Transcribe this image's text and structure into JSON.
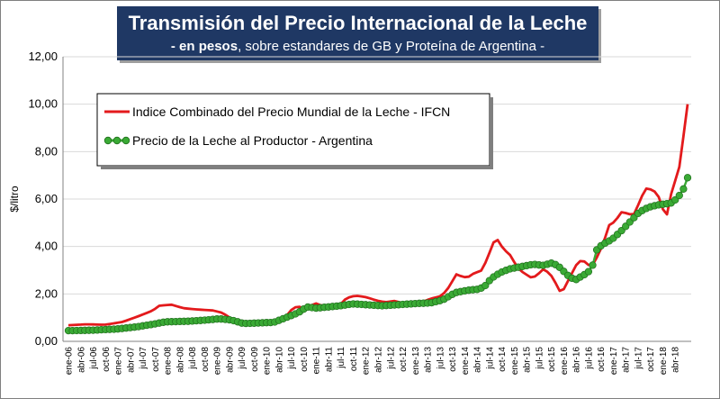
{
  "chart_data": {
    "type": "line",
    "title": "Transmisión del Precio Internacional de la Leche",
    "subtitle_bold": "- en pesos",
    "subtitle_rest": ", sobre estandares de GB y Proteína de  Argentina -",
    "xlabel": "",
    "ylabel": "$/litro",
    "ylim": [
      0,
      12
    ],
    "yticks": [
      "0,00",
      "2,00",
      "4,00",
      "6,00",
      "8,00",
      "10,00",
      "12,00"
    ],
    "xtick_labels": [
      "ene-06",
      "abr-06",
      "jul-06",
      "oct-06",
      "ene-07",
      "abr-07",
      "jul-07",
      "oct-07",
      "ene-08",
      "abr-08",
      "jul-08",
      "oct-08",
      "ene-09",
      "abr-09",
      "jul-09",
      "oct-09",
      "ene-10",
      "abr-10",
      "jul-10",
      "oct-10",
      "ene-11",
      "abr-11",
      "jul-11",
      "oct-11",
      "ene-12",
      "abr-12",
      "jul-12",
      "oct-12",
      "ene-13",
      "abr-13",
      "jul-13",
      "oct-13",
      "ene-14",
      "abr-14",
      "jul-14",
      "oct-14",
      "ene-15",
      "abr-15",
      "jul-15",
      "oct-15",
      "ene-16",
      "abr-16",
      "jul-16",
      "oct-16",
      "ene-17",
      "abr-17",
      "jul-17",
      "oct-17",
      "ene-18",
      "abr-18"
    ],
    "n_points": 151,
    "series": [
      {
        "name": "Indice Combinado del Precio Mundial de la Leche - IFCN",
        "color": "#e31a1c",
        "style": "line",
        "keypoints": [
          [
            0,
            0.68
          ],
          [
            6,
            0.72
          ],
          [
            12,
            0.7
          ],
          [
            18,
            0.82
          ],
          [
            24,
            1.1
          ],
          [
            28,
            1.3
          ],
          [
            30,
            1.5
          ],
          [
            34,
            1.55
          ],
          [
            38,
            1.4
          ],
          [
            42,
            1.35
          ],
          [
            48,
            1.3
          ],
          [
            51,
            1.2
          ],
          [
            54,
            0.95
          ],
          [
            60,
            0.75
          ],
          [
            66,
            0.78
          ],
          [
            70,
            0.85
          ],
          [
            72,
            1.05
          ],
          [
            74,
            1.35
          ],
          [
            76,
            1.5
          ],
          [
            78,
            1.35
          ],
          [
            80,
            1.5
          ],
          [
            82,
            1.6
          ],
          [
            84,
            1.5
          ],
          [
            87,
            1.5
          ],
          [
            90,
            1.55
          ],
          [
            92,
            1.82
          ],
          [
            94,
            1.9
          ],
          [
            96,
            1.92
          ],
          [
            99,
            1.85
          ],
          [
            102,
            1.72
          ],
          [
            105,
            1.65
          ],
          [
            108,
            1.7
          ],
          [
            111,
            1.6
          ],
          [
            114,
            1.55
          ],
          [
            117,
            1.65
          ],
          [
            120,
            1.8
          ],
          [
            123,
            1.9
          ],
          [
            125,
            2.1
          ],
          [
            127,
            2.5
          ],
          [
            128,
            2.85
          ],
          [
            130,
            2.75
          ],
          [
            132,
            2.68
          ],
          [
            134,
            2.85
          ],
          [
            137,
            3.0
          ],
          [
            139,
            3.6
          ],
          [
            141,
            4.25
          ],
          [
            142,
            4.3
          ],
          [
            144,
            3.9
          ],
          [
            147,
            3.55
          ],
          [
            148,
            3.2
          ],
          [
            150,
            2.95
          ],
          [
            153,
            2.7
          ],
          [
            155,
            2.75
          ],
          [
            157,
            3.05
          ],
          [
            159,
            2.9
          ],
          [
            161,
            2.6
          ],
          [
            162,
            2.1
          ],
          [
            164,
            2.2
          ],
          [
            166,
            2.7
          ],
          [
            168,
            3.2
          ],
          [
            170,
            3.45
          ],
          [
            172,
            3.25
          ],
          [
            173,
            3.1
          ],
          [
            175,
            3.55
          ],
          [
            177,
            4.1
          ],
          [
            179,
            4.9
          ],
          [
            181,
            5.05
          ],
          [
            183,
            5.45
          ],
          [
            185,
            5.4
          ],
          [
            187,
            5.3
          ],
          [
            189,
            5.85
          ],
          [
            191,
            6.45
          ],
          [
            193,
            6.4
          ],
          [
            195,
            6.25
          ],
          [
            197,
            5.5
          ],
          [
            198,
            5.25
          ],
          [
            200,
            6.5
          ],
          [
            202,
            7.1
          ],
          [
            204,
            9.0
          ],
          [
            205,
            10.0
          ]
        ]
      },
      {
        "name": "Precio de la Leche al Productor - Argentina",
        "color": "#3aaa35",
        "style": "line-markers",
        "keypoints": [
          [
            0,
            0.45
          ],
          [
            8,
            0.47
          ],
          [
            16,
            0.52
          ],
          [
            22,
            0.6
          ],
          [
            28,
            0.72
          ],
          [
            32,
            0.82
          ],
          [
            40,
            0.85
          ],
          [
            46,
            0.9
          ],
          [
            50,
            0.95
          ],
          [
            54,
            0.9
          ],
          [
            58,
            0.75
          ],
          [
            64,
            0.78
          ],
          [
            68,
            0.8
          ],
          [
            72,
            1.0
          ],
          [
            76,
            1.2
          ],
          [
            79,
            1.45
          ],
          [
            82,
            1.4
          ],
          [
            86,
            1.45
          ],
          [
            90,
            1.5
          ],
          [
            94,
            1.58
          ],
          [
            98,
            1.55
          ],
          [
            104,
            1.5
          ],
          [
            110,
            1.55
          ],
          [
            116,
            1.6
          ],
          [
            120,
            1.62
          ],
          [
            124,
            1.75
          ],
          [
            128,
            2.05
          ],
          [
            132,
            2.15
          ],
          [
            136,
            2.2
          ],
          [
            138,
            2.35
          ],
          [
            140,
            2.65
          ],
          [
            143,
            2.9
          ],
          [
            146,
            3.05
          ],
          [
            150,
            3.15
          ],
          [
            154,
            3.25
          ],
          [
            157,
            3.2
          ],
          [
            160,
            3.3
          ],
          [
            162,
            3.2
          ],
          [
            164,
            2.95
          ],
          [
            166,
            2.7
          ],
          [
            168,
            2.6
          ],
          [
            170,
            2.75
          ],
          [
            172,
            2.9
          ],
          [
            174,
            3.3
          ],
          [
            175,
            3.9
          ],
          [
            177,
            4.1
          ],
          [
            180,
            4.3
          ],
          [
            183,
            4.65
          ],
          [
            186,
            5.05
          ],
          [
            189,
            5.45
          ],
          [
            192,
            5.65
          ],
          [
            195,
            5.75
          ],
          [
            198,
            5.8
          ],
          [
            200,
            5.85
          ],
          [
            202,
            6.1
          ],
          [
            204,
            6.5
          ],
          [
            205,
            6.9
          ]
        ]
      }
    ],
    "legend": {
      "placement": "top-left"
    }
  }
}
